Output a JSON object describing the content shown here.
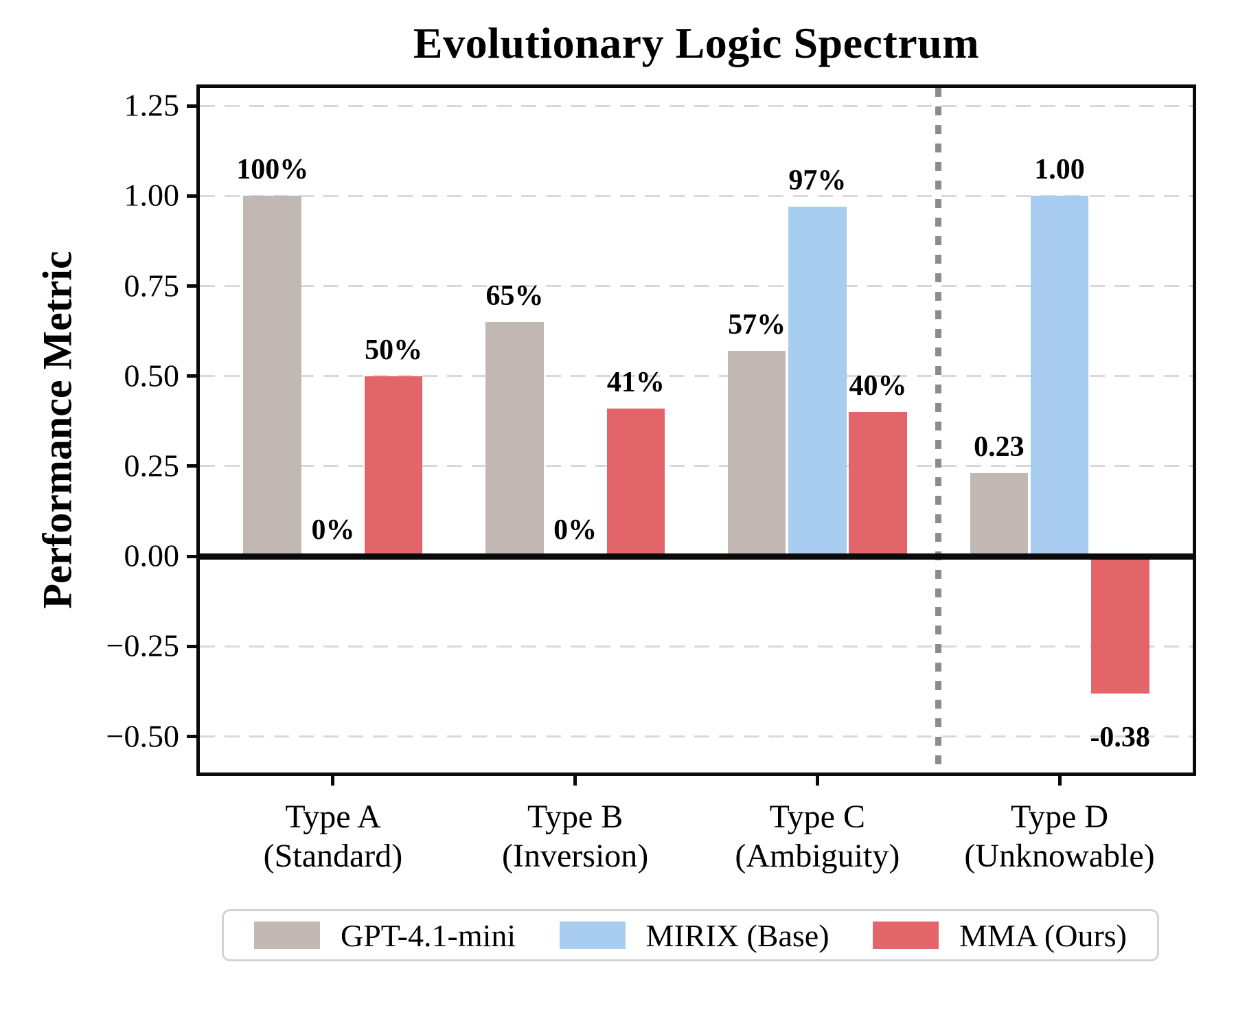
{
  "chart_data": {
    "type": "bar",
    "title": "Evolutionary Logic Spectrum",
    "ylabel": "Performance Metric",
    "xlabel": "",
    "categories": [
      [
        "Type A",
        "(Standard)"
      ],
      [
        "Type B",
        "(Inversion)"
      ],
      [
        "Type C",
        "(Ambiguity)"
      ],
      [
        "Type D",
        "(Unknowable)"
      ]
    ],
    "series": [
      {
        "name": "GPT-4.1-mini",
        "color": "#c1b7b3",
        "values": [
          1.0,
          0.65,
          0.57,
          0.23
        ],
        "labels": [
          "100%",
          "65%",
          "57%",
          "0.23"
        ]
      },
      {
        "name": "MIRIX (Base)",
        "color": "#a9ccf1",
        "values": [
          0.0,
          0.0,
          0.97,
          1.0
        ],
        "labels": [
          "0%",
          "0%",
          "97%",
          "1.00"
        ]
      },
      {
        "name": "MMA (Ours)",
        "color": "#e2656a",
        "values": [
          0.5,
          0.41,
          0.4,
          -0.38
        ],
        "labels": [
          "50%",
          "41%",
          "40%",
          "-0.38"
        ]
      }
    ],
    "ylim": [
      -0.6,
      1.3
    ],
    "yticks": [
      {
        "value": 1.25,
        "label": "1.25"
      },
      {
        "value": 1.0,
        "label": "1.00"
      },
      {
        "value": 0.75,
        "label": "0.75"
      },
      {
        "value": 0.5,
        "label": "0.50"
      },
      {
        "value": 0.25,
        "label": "0.25"
      },
      {
        "value": 0.0,
        "label": "0.00"
      },
      {
        "value": -0.25,
        "label": "−0.25"
      },
      {
        "value": -0.5,
        "label": "−0.50"
      }
    ],
    "grid": "horizontal-dashed",
    "separator_x": 2.5,
    "legend_position": "bottom-center",
    "colors": {
      "axis": "#0a0a0a",
      "gridline": "#d9d9d9",
      "separator": "#8c8c8c",
      "legend_border": "#d3d3d3"
    }
  }
}
